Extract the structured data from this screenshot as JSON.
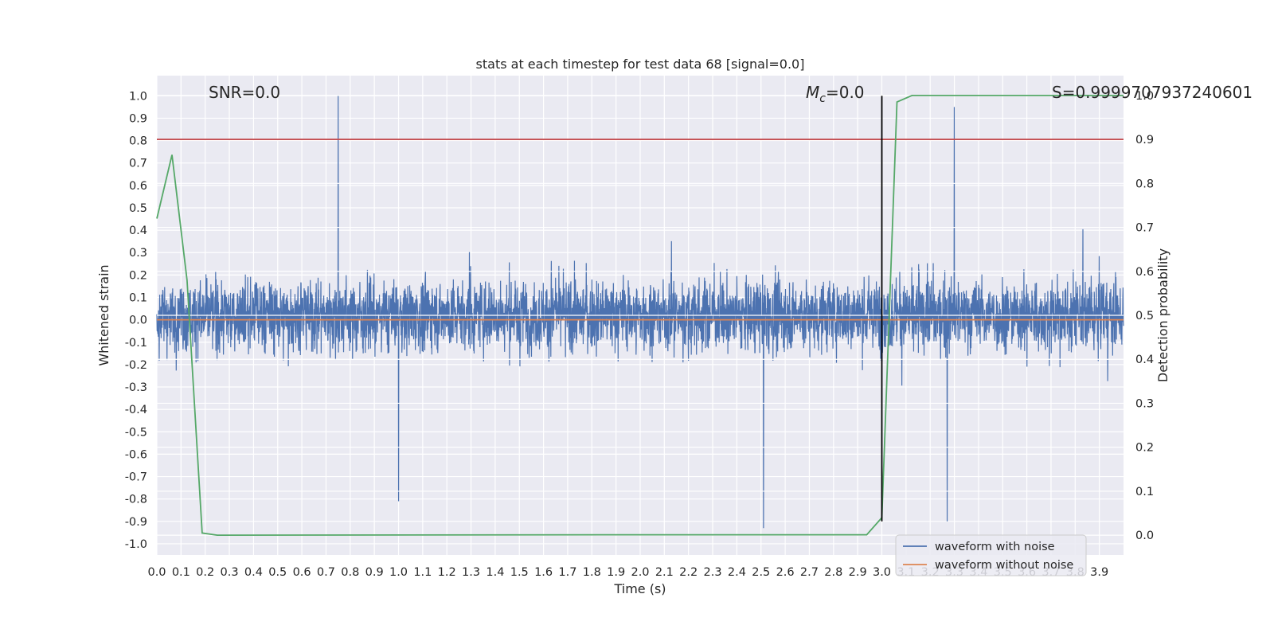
{
  "chart_data": {
    "type": "line",
    "title": "stats at each timestep for test data 68 [signal=0.0]",
    "xlabel": "Time (s)",
    "ylabel": "Whitened strain",
    "y2label": "Detection probability",
    "xlim": [
      0.0,
      4.0
    ],
    "ylim": [
      -1.05,
      1.09
    ],
    "y2lim": [
      -0.045,
      1.045
    ],
    "x_ticks": [
      "0.0",
      "0.1",
      "0.2",
      "0.3",
      "0.4",
      "0.5",
      "0.6",
      "0.7",
      "0.8",
      "0.9",
      "1.0",
      "1.1",
      "1.2",
      "1.3",
      "1.4",
      "1.5",
      "1.6",
      "1.7",
      "1.8",
      "1.9",
      "2.0",
      "2.1",
      "2.2",
      "2.3",
      "2.4",
      "2.5",
      "2.6",
      "2.7",
      "2.8",
      "2.9",
      "3.0",
      "3.1",
      "3.2",
      "3.3",
      "3.4",
      "3.5",
      "3.6",
      "3.7",
      "3.8",
      "3.9"
    ],
    "y_ticks": [
      "1.0",
      "0.9",
      "0.8",
      "0.7",
      "0.6",
      "0.5",
      "0.4",
      "0.3",
      "0.2",
      "0.1",
      "0.0",
      "-0.1",
      "-0.2",
      "-0.3",
      "-0.4",
      "-0.5",
      "-0.6",
      "-0.7",
      "-0.8",
      "-0.9",
      "-1.0"
    ],
    "y2_ticks": [
      "1.0",
      "0.9",
      "0.8",
      "0.7",
      "0.6",
      "0.5",
      "0.4",
      "0.3",
      "0.2",
      "0.1",
      "0.0"
    ],
    "grid": true,
    "legend_position": "bottom-right",
    "series": [
      {
        "name": "waveform with noise",
        "color": "#4c72b0",
        "axis": "left",
        "style": "dense noise, approximately within -0.6 to 0.6 with spikes to ~1.0 and ~-0.93",
        "notable_peaks": [
          {
            "x": 0.75,
            "y": 1.0
          },
          {
            "x": 3.3,
            "y": 0.95
          },
          {
            "x": 2.51,
            "y": -0.93
          },
          {
            "x": 1.0,
            "y": -0.81
          },
          {
            "x": 3.27,
            "y": -0.9
          }
        ]
      },
      {
        "name": "waveform without noise",
        "color": "#dd8452",
        "axis": "left",
        "x": [
          0.0,
          4.0
        ],
        "y": [
          0.0,
          0.0
        ]
      },
      {
        "name": "",
        "color": "#55a868",
        "axis": "right",
        "x": [
          0.0,
          0.0625,
          0.125,
          0.1875,
          0.25,
          2.0,
          2.9375,
          3.0,
          3.0625,
          3.125,
          3.25,
          4.0
        ],
        "y": [
          0.72,
          0.865,
          0.58,
          0.005,
          0.0,
          0.001,
          0.001,
          0.04,
          0.985,
          1.0,
          1.0,
          1.0
        ]
      }
    ],
    "threshold_line": {
      "axis": "right",
      "y": 0.9,
      "color": "#c44e52"
    },
    "vertical_line": {
      "x": 3.0,
      "y_from": -0.9,
      "y_to": 1.0,
      "color": "#000000"
    },
    "annotations": {
      "snr": "SNR=0.0",
      "mc_symbol": "M",
      "mc_sub": "c",
      "mc_value": "=0.0",
      "s": "S=0.9999707937240601"
    }
  }
}
